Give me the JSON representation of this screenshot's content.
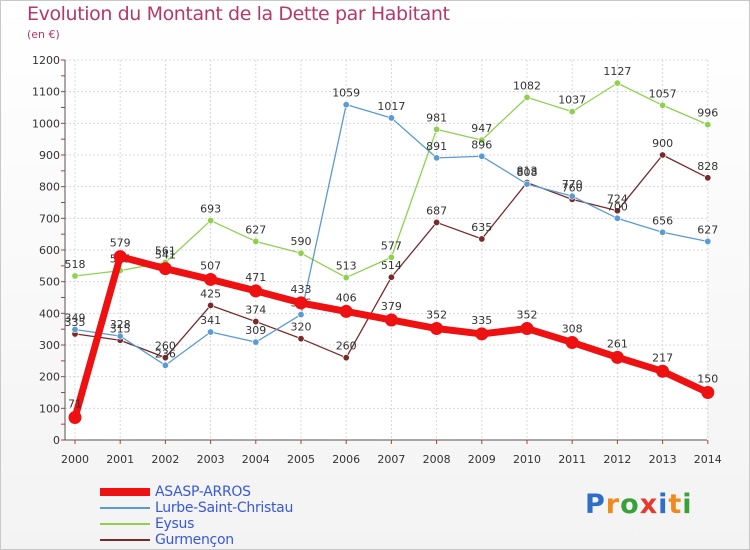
{
  "title": "Evolution du Montant de la Dette par Habitant",
  "unit": "(en €)",
  "logo": {
    "letters": [
      "P",
      "r",
      "o",
      "x",
      "i",
      "t",
      "i"
    ],
    "colors": [
      "#2d6fc8",
      "#f08a1c",
      "#3aa13a",
      "#e53b2c",
      "#2d6fc8",
      "#f08a1c",
      "#3aa13a"
    ]
  },
  "chart_data": {
    "type": "line",
    "title": "Evolution du Montant de la Dette par Habitant",
    "ylabel": "(en €)",
    "xlabel": "",
    "ylim": [
      0,
      1200
    ],
    "yticks": [
      0,
      100,
      200,
      300,
      400,
      500,
      600,
      700,
      800,
      900,
      1000,
      1100,
      1200
    ],
    "x": [
      "2000",
      "2001",
      "2002",
      "2003",
      "2004",
      "2005",
      "2006",
      "2007",
      "2008",
      "2009",
      "2010",
      "2011",
      "2012",
      "2013",
      "2014"
    ],
    "grid": true,
    "legend": "bottom-left",
    "series": [
      {
        "name": "ASASP-ARROS",
        "color": "#ee1111",
        "values": [
          71,
          579,
          541,
          507,
          471,
          433,
          406,
          379,
          352,
          335,
          352,
          308,
          261,
          217,
          150
        ]
      },
      {
        "name": "Lurbe-Saint-Christau",
        "color": "#5a9bd4",
        "values": [
          349,
          328,
          236,
          341,
          309,
          396,
          1059,
          1017,
          891,
          896,
          808,
          770,
          700,
          656,
          627
        ]
      },
      {
        "name": "Eysus",
        "color": "#8fd14f",
        "values": [
          518,
          535,
          561,
          693,
          627,
          590,
          513,
          577,
          981,
          947,
          1082,
          1037,
          1127,
          1057,
          996
        ]
      },
      {
        "name": "Gurmençon",
        "color": "#7a2a2a",
        "values": [
          335,
          315,
          260,
          425,
          374,
          320,
          260,
          514,
          687,
          635,
          813,
          760,
          724,
          900,
          828
        ]
      }
    ]
  }
}
